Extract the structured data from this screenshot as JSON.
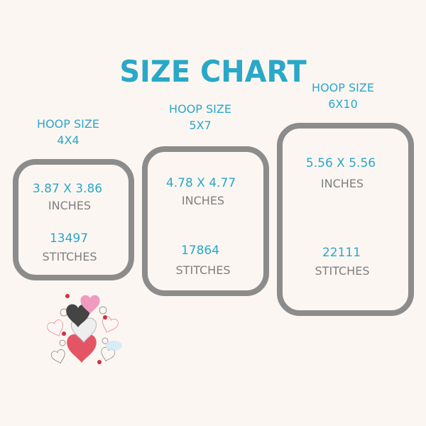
{
  "title": "SIZE CHART",
  "colors": {
    "accent": "#2aa8c8",
    "hoop_border": "#8c8c8c",
    "label_gray": "#7f7f7f",
    "background": "#fcf6f2"
  },
  "hoops": [
    {
      "label": "HOOP SIZE",
      "size": "4X4",
      "dimensions": "3.87 X 3.86",
      "dim_unit": "INCHES",
      "stitches": "13497",
      "stitch_unit": "STITCHES"
    },
    {
      "label": "HOOP SIZE",
      "size": "5X7",
      "dimensions": "4.78 X 4.77",
      "dim_unit": "INCHES",
      "stitches": "17864",
      "stitch_unit": "STITCHES"
    },
    {
      "label": "HOOP SIZE",
      "size": "6X10",
      "dimensions": "5.56 X 5.56",
      "dim_unit": "INCHES",
      "stitches": "22111",
      "stitch_unit": "STITCHES"
    }
  ],
  "design_preview": "hearts-embroidery-design"
}
